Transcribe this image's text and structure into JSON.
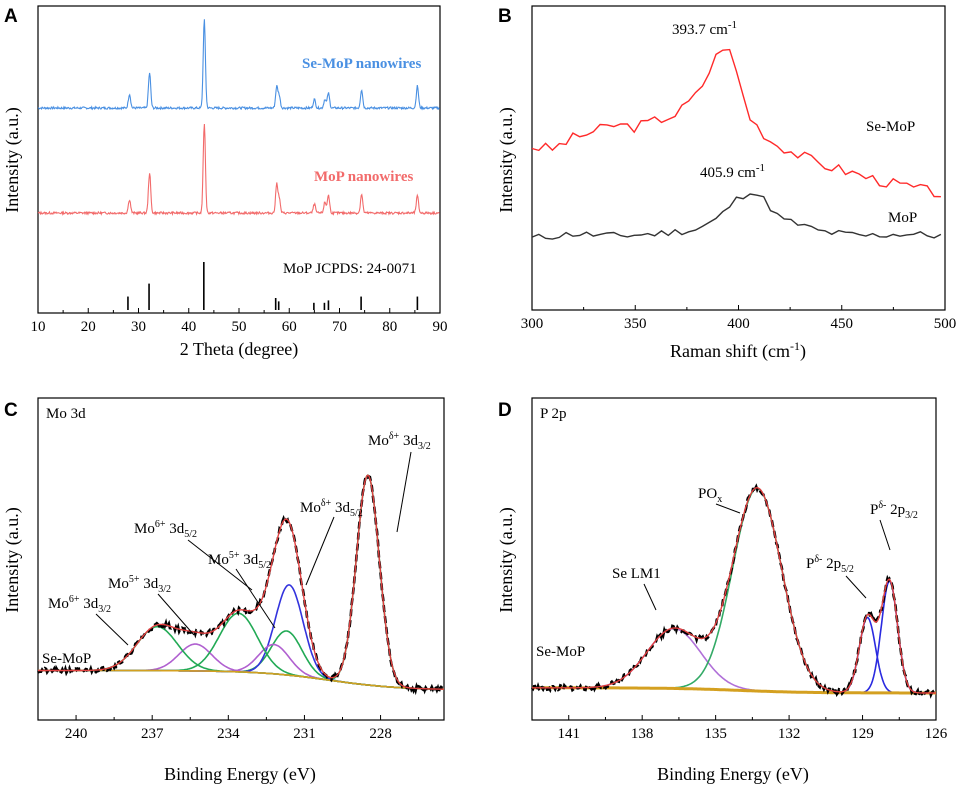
{
  "chart_data": [
    {
      "panel": "A",
      "type": "line",
      "xlabel": "2 Theta (degree)",
      "ylabel": "Intensity (a.u.)",
      "xlim": [
        10,
        90
      ],
      "xticks": [
        10,
        20,
        30,
        40,
        50,
        60,
        70,
        80,
        90
      ],
      "grid": false,
      "series": [
        {
          "name": "Se-MoP nanowires",
          "color": "#4a90e2",
          "peaks": [
            [
              28.2,
              0.16
            ],
            [
              32.2,
              0.4
            ],
            [
              43.1,
              1.0
            ],
            [
              57.5,
              0.24
            ],
            [
              58.0,
              0.14
            ],
            [
              65.0,
              0.1
            ],
            [
              67.1,
              0.1
            ],
            [
              67.8,
              0.17
            ],
            [
              74.4,
              0.21
            ],
            [
              85.5,
              0.25
            ]
          ]
        },
        {
          "name": "MoP nanowires",
          "color": "#f26b6b",
          "peaks": [
            [
              28.2,
              0.15
            ],
            [
              32.2,
              0.45
            ],
            [
              43.1,
              1.0
            ],
            [
              57.5,
              0.32
            ],
            [
              58.0,
              0.16
            ],
            [
              65.0,
              0.1
            ],
            [
              67.1,
              0.12
            ],
            [
              67.8,
              0.2
            ],
            [
              74.4,
              0.21
            ],
            [
              85.5,
              0.19
            ]
          ]
        }
      ],
      "reference": {
        "name": "MoP JCPDS: 24-0071",
        "lines": [
          [
            27.9,
            0.28
          ],
          [
            32.1,
            0.55
          ],
          [
            43.0,
            1.0
          ],
          [
            57.3,
            0.25
          ],
          [
            57.9,
            0.18
          ],
          [
            64.9,
            0.15
          ],
          [
            67.0,
            0.15
          ],
          [
            67.8,
            0.2
          ],
          [
            74.3,
            0.28
          ],
          [
            85.5,
            0.28
          ]
        ]
      }
    },
    {
      "panel": "B",
      "type": "line",
      "xlabel": "Raman shift (cm⁻¹)",
      "ylabel": "Intensity (a.u.)",
      "xlim": [
        300,
        500
      ],
      "xticks": [
        300,
        350,
        400,
        450,
        500
      ],
      "grid": false,
      "series": [
        {
          "name": "Se-MoP",
          "color": "#ff2a2a",
          "peak_label": "393.7 cm⁻¹",
          "x": [
            300,
            310,
            320,
            330,
            340,
            350,
            360,
            370,
            380,
            385,
            390,
            393.7,
            398,
            405,
            415,
            425,
            440,
            455,
            470,
            485,
            500
          ],
          "y": [
            0.52,
            0.51,
            0.56,
            0.59,
            0.62,
            0.61,
            0.64,
            0.67,
            0.76,
            0.85,
            0.95,
            1.0,
            0.9,
            0.66,
            0.55,
            0.5,
            0.44,
            0.4,
            0.36,
            0.33,
            0.3
          ]
        },
        {
          "name": "MoP",
          "color": "#333333",
          "peak_label": "405.9 cm⁻¹",
          "x": [
            300,
            320,
            340,
            360,
            380,
            390,
            398,
            405.9,
            412,
            420,
            440,
            460,
            480,
            500
          ],
          "y": [
            0.1,
            0.12,
            0.11,
            0.12,
            0.14,
            0.19,
            0.27,
            0.32,
            0.28,
            0.19,
            0.13,
            0.11,
            0.12,
            0.11
          ]
        }
      ]
    },
    {
      "panel": "C",
      "type": "line",
      "title": "Mo 3d",
      "sample": "Se-MoP",
      "xlabel": "Binding Energy (eV)",
      "ylabel": "Intensity (a.u.)",
      "xlim": [
        241.5,
        225.5
      ],
      "xticks": [
        240,
        237,
        234,
        231,
        228
      ],
      "baseline": {
        "high": 0.08,
        "low": 0.0,
        "center": 230.0
      },
      "components": [
        {
          "name": "Moδ+ 3d3/2 / 3d5/2 doublet",
          "color": "#22aa55",
          "peaks": [
            [
              228.5,
              0.86,
              0.45
            ],
            [
              231.7,
              0.18,
              0.6
            ]
          ]
        },
        {
          "name": "Mo5+",
          "color": "#3333dd",
          "peaks": [
            [
              231.6,
              0.37,
              0.55
            ]
          ]
        },
        {
          "name": "Mo5+ 3d5/2",
          "color": "#b060d0",
          "peaks": [
            [
              232.2,
              0.12,
              0.6
            ],
            [
              235.3,
              0.11,
              0.65
            ]
          ]
        },
        {
          "name": "Mo6+",
          "color": "#22aa55",
          "peaks": [
            [
              233.6,
              0.24,
              0.75
            ],
            [
              236.8,
              0.18,
              0.8
            ]
          ]
        }
      ],
      "annotations": [
        "Moδ+ 3d3/2",
        "Moδ+ 3d5/2",
        "Mo6+ 3d5/2",
        "Mo5+ 3d5/2",
        "Mo5+ 3d3/2",
        "Mo6+ 3d3/2"
      ]
    },
    {
      "panel": "D",
      "type": "line",
      "title": "P 2p",
      "sample": "Se-MoP",
      "xlabel": "Binding Energy (eV)",
      "ylabel": "Intensity (a.u.)",
      "xlim": [
        142.5,
        126
      ],
      "xticks": [
        141,
        138,
        135,
        132,
        129,
        126
      ],
      "baseline": {
        "high": 0.02,
        "low": 0.0,
        "center": 134.0
      },
      "components": [
        {
          "name": "Se LM1",
          "color": "#b070d8",
          "peaks": [
            [
              136.7,
              0.23,
              1.1
            ]
          ]
        },
        {
          "name": "POx",
          "color": "#33aa66",
          "peaks": [
            [
              133.3,
              0.78,
              1.0
            ]
          ]
        },
        {
          "name": "Pδ- 2p5/2",
          "color": "#2a2ae0",
          "peaks": [
            [
              128.8,
              0.29,
              0.33
            ]
          ]
        },
        {
          "name": "Pδ- 2p3/2",
          "color": "#2a2ae0",
          "peaks": [
            [
              127.9,
              0.43,
              0.33
            ]
          ]
        }
      ],
      "annotations": [
        "POx",
        "Se LM1",
        "Pδ- 2p5/2",
        "Pδ- 2p3/2"
      ]
    }
  ],
  "panels": {
    "a": {
      "label": "A",
      "series1": "Se-MoP nanowires",
      "series2": "MoP nanowires",
      "ref": "MoP JCPDS: 24-0071",
      "xlabel": "2 Theta (degree)",
      "ylabel": "Intensity (a.u.)",
      "xticks": [
        "10",
        "20",
        "30",
        "40",
        "50",
        "60",
        "70",
        "80",
        "90"
      ]
    },
    "b": {
      "label": "B",
      "series1": "Se-MoP",
      "series2": "MoP",
      "peak1": "393.7 cm",
      "peak2": "405.9 cm",
      "unit_sup": "-1",
      "xlabel": "Raman shift (cm",
      "xlabel_sup": "-1",
      "xlabel_end": ")",
      "ylabel": "Intensity (a.u.)",
      "xticks": [
        "300",
        "350",
        "400",
        "450",
        "500"
      ]
    },
    "c": {
      "label": "C",
      "title": "Mo 3d",
      "sample": "Se-MoP",
      "xlabel": "Binding Energy (eV)",
      "ylabel": "Intensity (a.u.)",
      "xticks": [
        "240",
        "237",
        "234",
        "231",
        "228"
      ],
      "mo": "Mo",
      "ann1_sup": "δ+",
      "ann1_sub": "3/2",
      "ann2_sup": "δ+",
      "ann2_sub": "5/2",
      "ann3_sup": "6+",
      "ann3_sub": "5/2",
      "ann4_sup": "5+",
      "ann4_sub": "5/2",
      "ann5_sup": "5+",
      "ann5_sub": "3/2",
      "ann6_sup": "6+",
      "ann6_sub": "3/2",
      "orb": " 3d"
    },
    "d": {
      "label": "D",
      "title": "P 2p",
      "sample": "Se-MoP",
      "xlabel": "Binding Energy (eV)",
      "ylabel": "Intensity (a.u.)",
      "xticks": [
        "141",
        "138",
        "135",
        "132",
        "129",
        "126"
      ],
      "po": "PO",
      "po_sub": "x",
      "se": "Se LM1",
      "p": "P",
      "p_sup": "δ-",
      "orb": " 2p",
      "sub1": "5/2",
      "sub2": "3/2"
    }
  },
  "colors": {
    "se_mop_xrd": "#4a90e2",
    "mop_xrd": "#f26b6b",
    "raman_se": "#ff2a2a",
    "raman_mop": "#333333",
    "envelope": "#e04040",
    "fit": "#000000",
    "baseline": "#d4a020"
  }
}
